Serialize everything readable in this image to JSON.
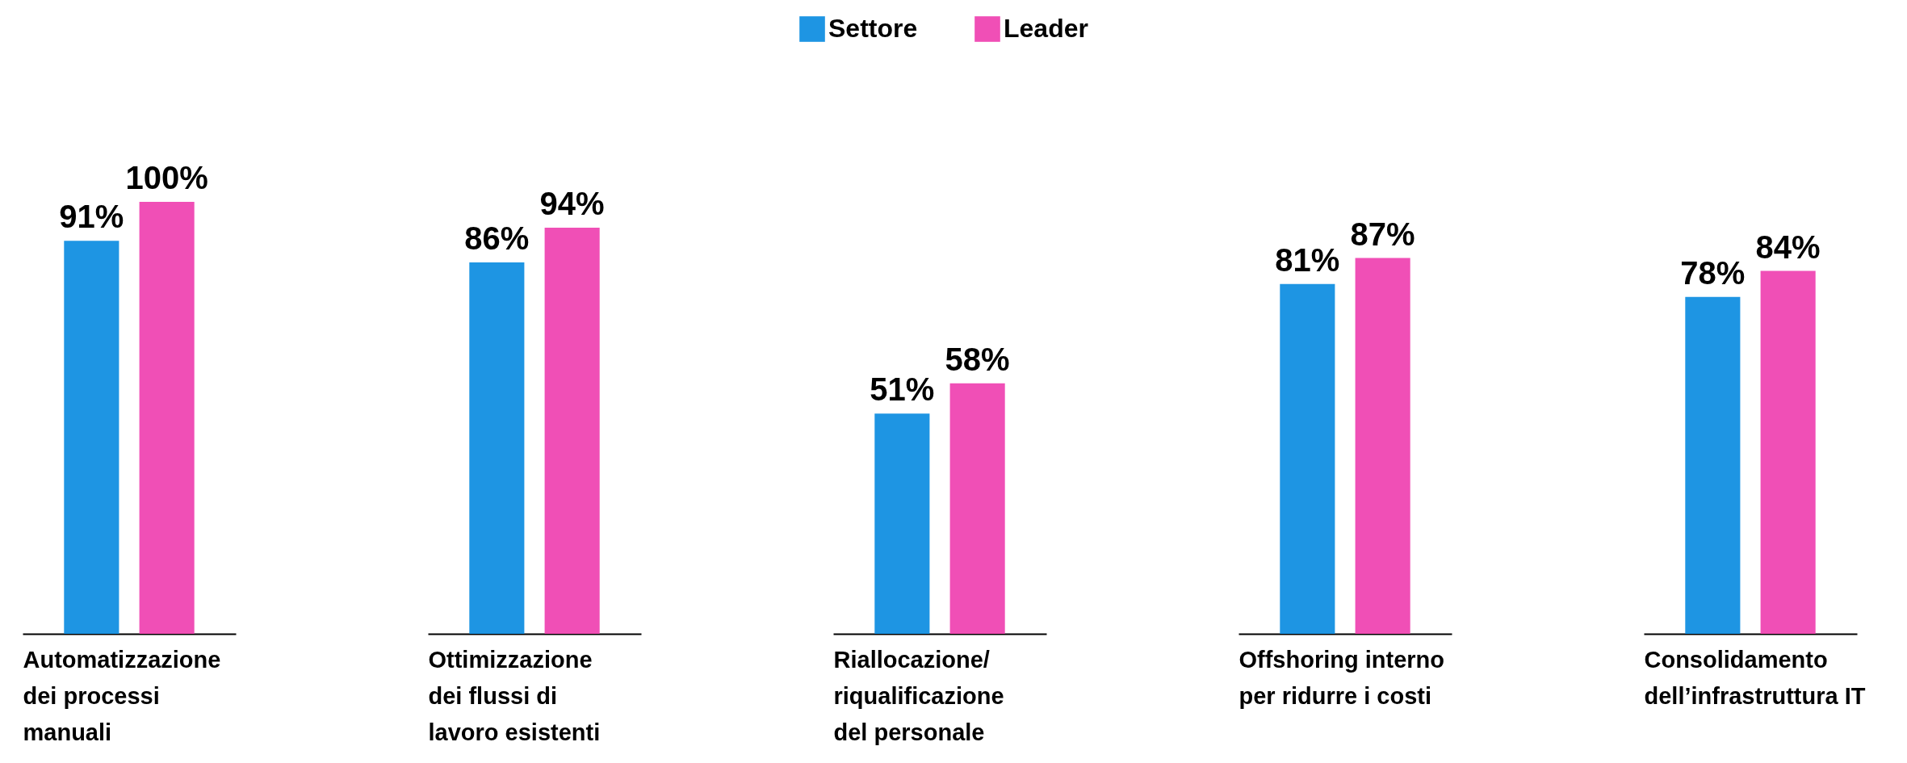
{
  "chart_data": {
    "type": "bar",
    "categories": [
      "Automatizzazione\ndei processi\nmanuali",
      "Ottimizzazione\ndei flussi di\nlavoro esistenti",
      "Riallocazione/\nriqualificazione\ndel personale",
      "Offshoring interno\nper ridurre i costi",
      "Consolidamento\ndell’infrastruttura IT"
    ],
    "series": [
      {
        "name": "Settore",
        "color": "#1e95e3",
        "values": [
          91,
          86,
          51,
          81,
          78
        ],
        "value_labels": [
          "91%",
          "86%",
          "51%",
          "81%",
          "78%"
        ]
      },
      {
        "name": "Leader",
        "color": "#f04fb6",
        "values": [
          100,
          94,
          58,
          87,
          84
        ],
        "value_labels": [
          "100%",
          "94%",
          "58%",
          "87%",
          "84%"
        ]
      }
    ],
    "legend": "top"
  }
}
